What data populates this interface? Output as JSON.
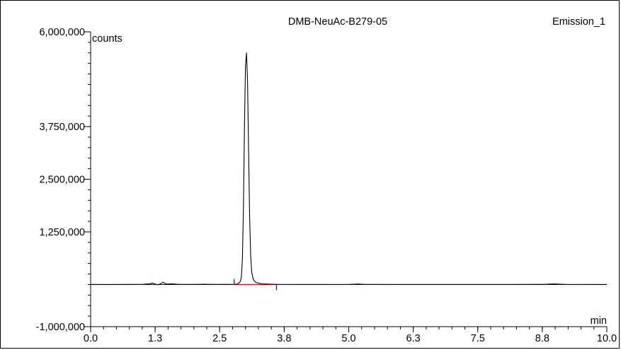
{
  "chart_data": {
    "type": "line",
    "title": "DMB-NeuAc-B279-05",
    "channel": "Emission_1",
    "ylabel": "counts",
    "xlabel": "min",
    "xlim": [
      0,
      10
    ],
    "ylim": [
      -1000000,
      6000000
    ],
    "x_ticks": [
      {
        "value": 0.0,
        "label": "0.0"
      },
      {
        "value": 1.25,
        "label": "1.3"
      },
      {
        "value": 2.5,
        "label": "2.5"
      },
      {
        "value": 3.75,
        "label": "3.8"
      },
      {
        "value": 5.0,
        "label": "5.0"
      },
      {
        "value": 6.25,
        "label": "6.3"
      },
      {
        "value": 7.5,
        "label": "7.5"
      },
      {
        "value": 8.75,
        "label": "8.8"
      },
      {
        "value": 10.0,
        "label": "10.0"
      }
    ],
    "y_ticks": [
      {
        "value": 6000000,
        "label": "6,000,000"
      },
      {
        "value": 3750000,
        "label": "3,750,000"
      },
      {
        "value": 2500000,
        "label": "2,500,000"
      },
      {
        "value": 1250000,
        "label": "1,250,000"
      },
      {
        "value": -1000000,
        "label": "-1,000,000"
      }
    ],
    "y_minor_step": 250000,
    "x_minor_step": 0.25,
    "series": [
      {
        "color": "#000000",
        "x": [
          0.0,
          0.5,
          1.0,
          1.15,
          1.2,
          1.25,
          1.3,
          1.35,
          1.4,
          1.45,
          1.5,
          1.55,
          1.6,
          1.7,
          1.8,
          2.0,
          2.2,
          2.4,
          2.6,
          2.7,
          2.8,
          2.85,
          2.9,
          2.92,
          2.94,
          2.96,
          2.98,
          3.0,
          3.02,
          3.04,
          3.06,
          3.08,
          3.1,
          3.12,
          3.15,
          3.2,
          3.3,
          3.5,
          3.6,
          4.0,
          4.5,
          5.0,
          5.1,
          5.2,
          5.3,
          5.5,
          6.0,
          7.0,
          8.0,
          8.8,
          8.9,
          9.0,
          9.1,
          9.2,
          10.0
        ],
        "y": [
          0,
          0,
          5000,
          20000,
          35000,
          10000,
          -5000,
          15000,
          55000,
          20000,
          10000,
          20000,
          15000,
          5000,
          3000,
          2000,
          8000,
          3000,
          5000,
          3000,
          5000,
          15000,
          70000,
          180000,
          600000,
          1800000,
          3800000,
          5200000,
          5500000,
          4800000,
          3200000,
          1600000,
          700000,
          300000,
          120000,
          50000,
          20000,
          8000,
          3000,
          1000,
          1000,
          3000,
          8000,
          12000,
          5000,
          3000,
          1000,
          1000,
          1000,
          5000,
          12000,
          15000,
          8000,
          3000,
          0
        ]
      }
    ],
    "baseline": {
      "color": "#ff0000",
      "x": [
        2.75,
        3.65
      ],
      "y": [
        0,
        0
      ]
    },
    "peak_markers": {
      "color": "#0000ff",
      "x": [
        2.78,
        3.6
      ]
    },
    "grid": false
  }
}
